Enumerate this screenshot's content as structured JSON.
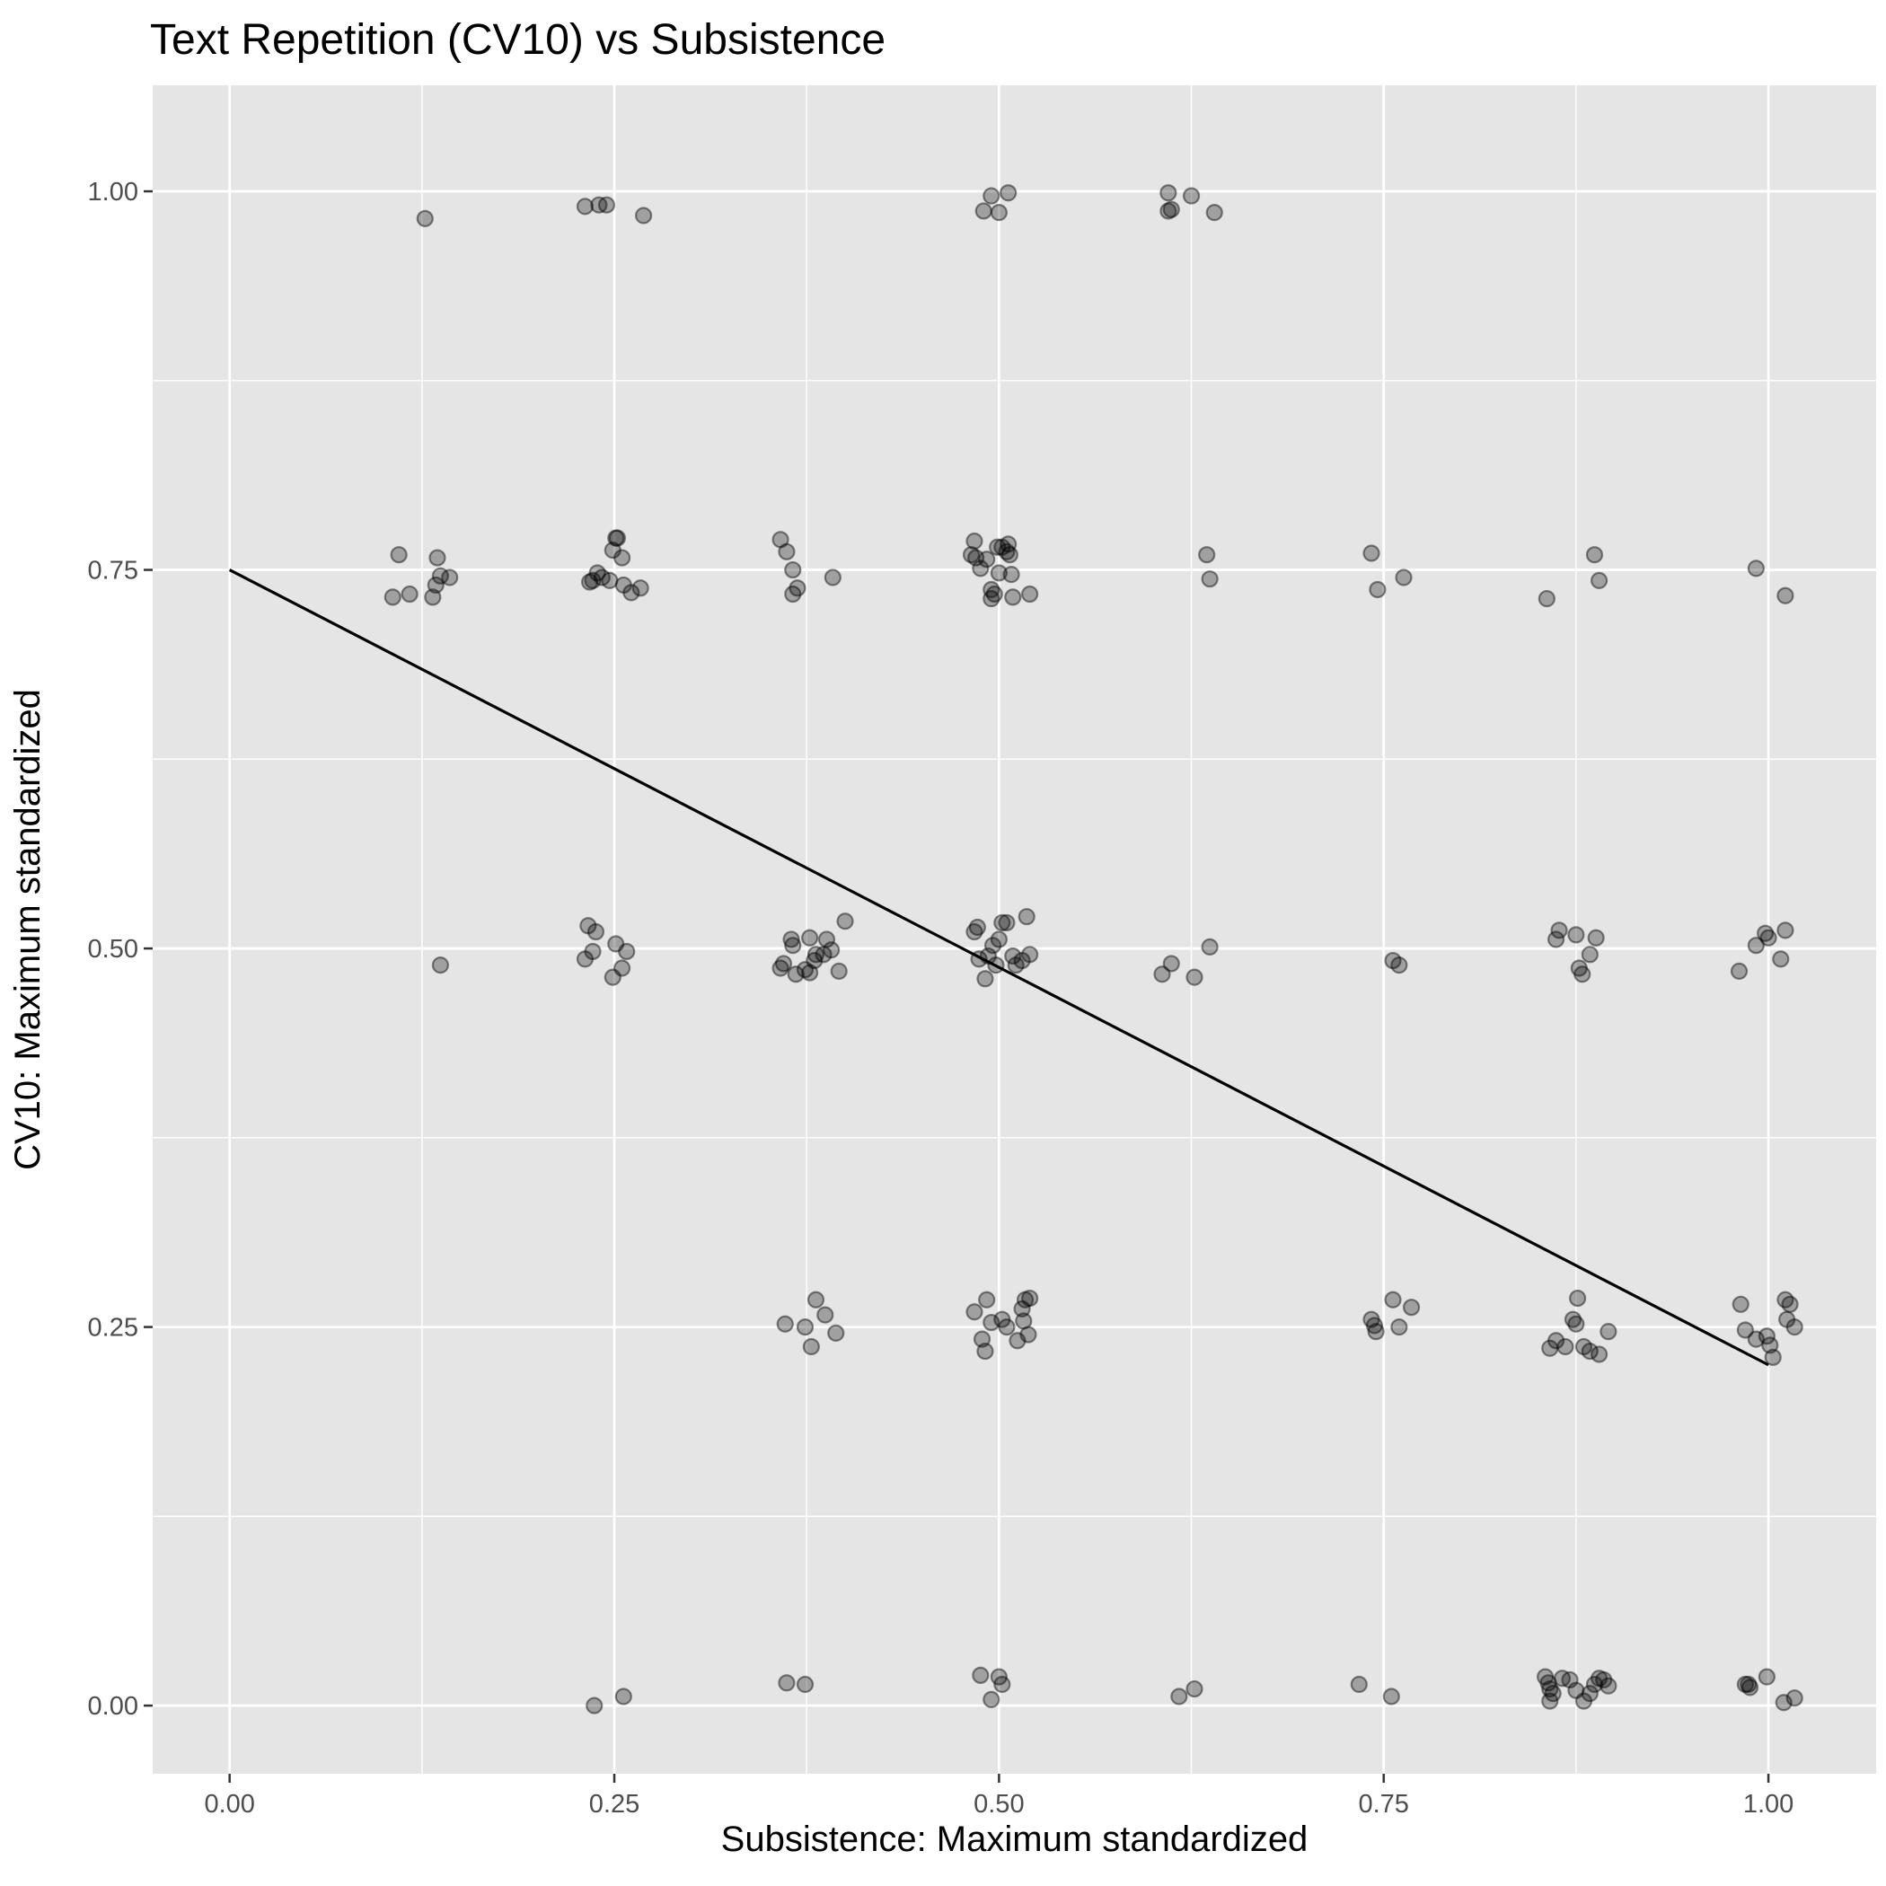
{
  "chart_data": {
    "type": "scatter",
    "title": "Text Repetition (CV10) vs Subsistence",
    "xlabel": "Subsistence: Maximum standardized",
    "ylabel": "CV10: Maximum standardized",
    "xlim": [
      -0.05,
      1.07
    ],
    "ylim": [
      -0.045,
      1.07
    ],
    "x_ticks": [
      "0.00",
      "0.25",
      "0.50",
      "0.75",
      "1.00"
    ],
    "y_ticks": [
      "0.00",
      "0.25",
      "0.50",
      "0.75",
      "1.00"
    ],
    "grid": true,
    "point_color": "#000000",
    "point_alpha": 0.3,
    "background": "#e5e5e5",
    "fit_line": {
      "x": [
        0.0,
        1.0
      ],
      "y": [
        0.75,
        0.225
      ]
    },
    "points": [
      [
        0.127,
        0.982
      ],
      [
        0.231,
        0.99
      ],
      [
        0.24,
        0.991
      ],
      [
        0.245,
        0.991
      ],
      [
        0.269,
        0.984
      ],
      [
        0.49,
        0.987
      ],
      [
        0.495,
        0.997
      ],
      [
        0.5,
        0.986
      ],
      [
        0.506,
        0.999
      ],
      [
        0.61,
        0.999
      ],
      [
        0.61,
        0.987
      ],
      [
        0.612,
        0.988
      ],
      [
        0.625,
        0.997
      ],
      [
        0.64,
        0.986
      ],
      [
        0.106,
        0.732
      ],
      [
        0.11,
        0.76
      ],
      [
        0.117,
        0.734
      ],
      [
        0.132,
        0.732
      ],
      [
        0.134,
        0.74
      ],
      [
        0.135,
        0.758
      ],
      [
        0.137,
        0.746
      ],
      [
        0.143,
        0.745
      ],
      [
        0.234,
        0.742
      ],
      [
        0.236,
        0.743
      ],
      [
        0.239,
        0.748
      ],
      [
        0.242,
        0.745
      ],
      [
        0.247,
        0.743
      ],
      [
        0.249,
        0.763
      ],
      [
        0.251,
        0.771
      ],
      [
        0.252,
        0.771
      ],
      [
        0.255,
        0.758
      ],
      [
        0.256,
        0.74
      ],
      [
        0.261,
        0.735
      ],
      [
        0.267,
        0.738
      ],
      [
        0.358,
        0.77
      ],
      [
        0.362,
        0.762
      ],
      [
        0.366,
        0.75
      ],
      [
        0.366,
        0.734
      ],
      [
        0.369,
        0.738
      ],
      [
        0.392,
        0.745
      ],
      [
        0.482,
        0.76
      ],
      [
        0.484,
        0.769
      ],
      [
        0.485,
        0.758
      ],
      [
        0.488,
        0.751
      ],
      [
        0.492,
        0.757
      ],
      [
        0.495,
        0.737
      ],
      [
        0.495,
        0.731
      ],
      [
        0.497,
        0.734
      ],
      [
        0.499,
        0.765
      ],
      [
        0.5,
        0.748
      ],
      [
        0.502,
        0.765
      ],
      [
        0.505,
        0.762
      ],
      [
        0.506,
        0.767
      ],
      [
        0.507,
        0.76
      ],
      [
        0.508,
        0.747
      ],
      [
        0.509,
        0.732
      ],
      [
        0.52,
        0.734
      ],
      [
        0.635,
        0.76
      ],
      [
        0.637,
        0.744
      ],
      [
        0.742,
        0.761
      ],
      [
        0.746,
        0.737
      ],
      [
        0.763,
        0.745
      ],
      [
        0.856,
        0.731
      ],
      [
        0.887,
        0.76
      ],
      [
        0.89,
        0.743
      ],
      [
        0.992,
        0.751
      ],
      [
        1.011,
        0.733
      ],
      [
        0.231,
        0.493
      ],
      [
        0.233,
        0.515
      ],
      [
        0.236,
        0.498
      ],
      [
        0.238,
        0.511
      ],
      [
        0.249,
        0.481
      ],
      [
        0.251,
        0.503
      ],
      [
        0.255,
        0.487
      ],
      [
        0.258,
        0.498
      ],
      [
        0.137,
        0.489
      ],
      [
        0.358,
        0.487
      ],
      [
        0.36,
        0.49
      ],
      [
        0.365,
        0.506
      ],
      [
        0.366,
        0.502
      ],
      [
        0.368,
        0.483
      ],
      [
        0.374,
        0.486
      ],
      [
        0.377,
        0.507
      ],
      [
        0.377,
        0.484
      ],
      [
        0.38,
        0.492
      ],
      [
        0.381,
        0.496
      ],
      [
        0.386,
        0.496
      ],
      [
        0.388,
        0.506
      ],
      [
        0.391,
        0.499
      ],
      [
        0.396,
        0.485
      ],
      [
        0.4,
        0.518
      ],
      [
        0.484,
        0.511
      ],
      [
        0.486,
        0.514
      ],
      [
        0.487,
        0.493
      ],
      [
        0.491,
        0.48
      ],
      [
        0.493,
        0.495
      ],
      [
        0.496,
        0.502
      ],
      [
        0.498,
        0.489
      ],
      [
        0.5,
        0.506
      ],
      [
        0.502,
        0.517
      ],
      [
        0.505,
        0.517
      ],
      [
        0.509,
        0.495
      ],
      [
        0.511,
        0.489
      ],
      [
        0.515,
        0.492
      ],
      [
        0.518,
        0.521
      ],
      [
        0.52,
        0.496
      ],
      [
        0.606,
        0.483
      ],
      [
        0.612,
        0.49
      ],
      [
        0.627,
        0.481
      ],
      [
        0.637,
        0.501
      ],
      [
        0.756,
        0.492
      ],
      [
        0.76,
        0.489
      ],
      [
        0.862,
        0.506
      ],
      [
        0.864,
        0.512
      ],
      [
        0.875,
        0.509
      ],
      [
        0.877,
        0.487
      ],
      [
        0.879,
        0.483
      ],
      [
        0.884,
        0.496
      ],
      [
        0.888,
        0.507
      ],
      [
        0.981,
        0.485
      ],
      [
        0.992,
        0.502
      ],
      [
        0.998,
        0.51
      ],
      [
        1.0,
        0.507
      ],
      [
        1.008,
        0.493
      ],
      [
        1.011,
        0.512
      ],
      [
        0.361,
        0.252
      ],
      [
        0.374,
        0.25
      ],
      [
        0.378,
        0.237
      ],
      [
        0.381,
        0.268
      ],
      [
        0.387,
        0.258
      ],
      [
        0.394,
        0.246
      ],
      [
        0.484,
        0.26
      ],
      [
        0.489,
        0.242
      ],
      [
        0.491,
        0.234
      ],
      [
        0.492,
        0.268
      ],
      [
        0.495,
        0.253
      ],
      [
        0.502,
        0.255
      ],
      [
        0.505,
        0.25
      ],
      [
        0.512,
        0.241
      ],
      [
        0.515,
        0.262
      ],
      [
        0.516,
        0.254
      ],
      [
        0.517,
        0.268
      ],
      [
        0.519,
        0.245
      ],
      [
        0.52,
        0.269
      ],
      [
        0.742,
        0.255
      ],
      [
        0.744,
        0.251
      ],
      [
        0.745,
        0.247
      ],
      [
        0.756,
        0.268
      ],
      [
        0.76,
        0.25
      ],
      [
        0.768,
        0.263
      ],
      [
        0.858,
        0.236
      ],
      [
        0.862,
        0.241
      ],
      [
        0.868,
        0.237
      ],
      [
        0.873,
        0.255
      ],
      [
        0.875,
        0.252
      ],
      [
        0.876,
        0.269
      ],
      [
        0.88,
        0.237
      ],
      [
        0.884,
        0.234
      ],
      [
        0.89,
        0.232
      ],
      [
        0.896,
        0.247
      ],
      [
        0.982,
        0.265
      ],
      [
        0.985,
        0.248
      ],
      [
        0.992,
        0.242
      ],
      [
        0.999,
        0.244
      ],
      [
        1.001,
        0.238
      ],
      [
        1.003,
        0.23
      ],
      [
        1.011,
        0.268
      ],
      [
        1.012,
        0.255
      ],
      [
        1.014,
        0.265
      ],
      [
        1.017,
        0.25
      ],
      [
        0.237,
        0.0
      ],
      [
        0.256,
        0.006
      ],
      [
        0.362,
        0.015
      ],
      [
        0.374,
        0.014
      ],
      [
        0.488,
        0.02
      ],
      [
        0.495,
        0.004
      ],
      [
        0.5,
        0.019
      ],
      [
        0.502,
        0.014
      ],
      [
        0.617,
        0.006
      ],
      [
        0.627,
        0.011
      ],
      [
        0.734,
        0.014
      ],
      [
        0.755,
        0.006
      ],
      [
        0.855,
        0.019
      ],
      [
        0.857,
        0.015
      ],
      [
        0.858,
        0.011
      ],
      [
        0.858,
        0.003
      ],
      [
        0.86,
        0.008
      ],
      [
        0.866,
        0.018
      ],
      [
        0.871,
        0.017
      ],
      [
        0.875,
        0.01
      ],
      [
        0.88,
        0.003
      ],
      [
        0.884,
        0.008
      ],
      [
        0.887,
        0.014
      ],
      [
        0.89,
        0.018
      ],
      [
        0.893,
        0.017
      ],
      [
        0.896,
        0.013
      ],
      [
        0.985,
        0.014
      ],
      [
        0.987,
        0.014
      ],
      [
        0.988,
        0.012
      ],
      [
        0.999,
        0.019
      ],
      [
        1.01,
        0.002
      ],
      [
        1.017,
        0.005
      ]
    ]
  }
}
